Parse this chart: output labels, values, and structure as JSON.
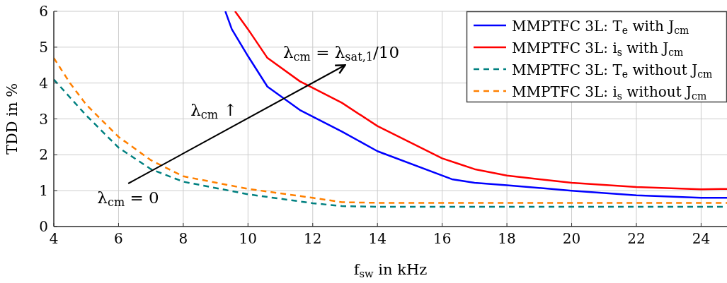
{
  "chart_data": {
    "type": "line",
    "xlabel": "f$_{sw}$ in kHz",
    "ylabel": "TDD in %",
    "xlim": [
      4,
      24.8
    ],
    "ylim": [
      0,
      6
    ],
    "xticks": [
      4,
      6,
      8,
      10,
      12,
      14,
      16,
      18,
      20,
      22,
      24
    ],
    "yticks": [
      0,
      1,
      2,
      3,
      4,
      5,
      6
    ],
    "grid": true,
    "legend": "top right",
    "annotations": [
      "λ$_{cm}$ = 0",
      "λ$_{cm}$ ↑",
      "λ$_{cm}$ = λ$_{sat,1}$/10"
    ],
    "series": [
      {
        "name": "MMPTFC 3L: T$_{e}$ with J$_{cm}$",
        "color": "#0000ff",
        "line_style": "solid",
        "x": [
          9.3,
          9.5,
          10,
          10.6,
          11.6,
          12.9,
          14,
          16.3,
          17,
          18,
          20,
          22,
          24,
          24.8
        ],
        "values": [
          6,
          5.5,
          4.75,
          3.9,
          3.25,
          2.65,
          2.1,
          1.32,
          1.22,
          1.15,
          1.0,
          0.87,
          0.8,
          0.8
        ]
      },
      {
        "name": "MMPTFC 3L: i$_{s}$ with J$_{cm}$",
        "color": "#ff0000",
        "line_style": "solid",
        "x": [
          9.6,
          10,
          10.6,
          11.6,
          12.9,
          14,
          16,
          16.5,
          17,
          18,
          20,
          22,
          24,
          24.8
        ],
        "values": [
          6,
          5.5,
          4.7,
          4.05,
          3.45,
          2.8,
          1.9,
          1.75,
          1.6,
          1.42,
          1.22,
          1.1,
          1.04,
          1.05
        ]
      },
      {
        "name": "MMPTFC 3L: T$_{e}$ without J$_{cm}$",
        "color": "#008080",
        "line_style": "dashed",
        "x": [
          4,
          4.5,
          5,
          6,
          7,
          8,
          10,
          12,
          12.9,
          14,
          24.8
        ],
        "values": [
          4.1,
          3.6,
          3.1,
          2.2,
          1.6,
          1.25,
          0.9,
          0.65,
          0.57,
          0.55,
          0.55
        ]
      },
      {
        "name": "MMPTFC 3L: i$_{s}$ without J$_{cm}$",
        "color": "#ff8000",
        "line_style": "dashed",
        "x": [
          4,
          4.5,
          5,
          6,
          7,
          8,
          10,
          12,
          12.9,
          14,
          24.8
        ],
        "values": [
          4.7,
          4.0,
          3.4,
          2.5,
          1.85,
          1.4,
          1.05,
          0.8,
          0.68,
          0.66,
          0.66
        ]
      }
    ]
  }
}
